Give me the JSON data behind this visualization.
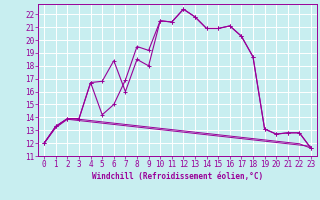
{
  "title": "",
  "xlabel": "Windchill (Refroidissement éolien,°C)",
  "bg_color": "#c8eef0",
  "grid_color": "#ffffff",
  "line_color": "#990099",
  "xlim": [
    -0.5,
    23.5
  ],
  "ylim": [
    11,
    22.8
  ],
  "xticks": [
    0,
    1,
    2,
    3,
    4,
    5,
    6,
    7,
    8,
    9,
    10,
    11,
    12,
    13,
    14,
    15,
    16,
    17,
    18,
    19,
    20,
    21,
    22,
    23
  ],
  "yticks": [
    11,
    12,
    13,
    14,
    15,
    16,
    17,
    18,
    19,
    20,
    21,
    22
  ],
  "series1_x": [
    0,
    1,
    2,
    3,
    4,
    5,
    6,
    7,
    8,
    9,
    10,
    11,
    12,
    13,
    14,
    15,
    16,
    17,
    18,
    19,
    20,
    21,
    22,
    23
  ],
  "series1_y": [
    12.0,
    13.3,
    13.9,
    13.9,
    16.7,
    14.2,
    15.0,
    16.9,
    19.5,
    19.2,
    21.5,
    21.4,
    22.4,
    21.8,
    20.9,
    20.9,
    21.1,
    20.3,
    18.7,
    13.1,
    12.7,
    12.8,
    12.8,
    11.6
  ],
  "series2_x": [
    0,
    1,
    2,
    3,
    4,
    5,
    6,
    7,
    8,
    9,
    10,
    11,
    12,
    13,
    14,
    15,
    16,
    17,
    18,
    19,
    20,
    21,
    22,
    23
  ],
  "series2_y": [
    12.0,
    13.3,
    13.9,
    13.9,
    16.7,
    16.8,
    18.4,
    16.0,
    18.5,
    18.0,
    21.5,
    21.4,
    22.4,
    21.8,
    20.9,
    20.9,
    21.1,
    20.3,
    18.7,
    13.1,
    12.7,
    12.8,
    12.8,
    11.6
  ],
  "series3_x": [
    0,
    1,
    2,
    3,
    4,
    5,
    6,
    7,
    8,
    9,
    10,
    11,
    12,
    13,
    14,
    15,
    16,
    17,
    18,
    19,
    20,
    21,
    22,
    23
  ],
  "series3_y": [
    12.0,
    13.2,
    13.85,
    13.75,
    13.65,
    13.55,
    13.45,
    13.35,
    13.25,
    13.15,
    13.05,
    12.95,
    12.85,
    12.75,
    12.65,
    12.55,
    12.45,
    12.35,
    12.25,
    12.15,
    12.05,
    11.95,
    11.85,
    11.75
  ],
  "series4_x": [
    0,
    1,
    2,
    3,
    4,
    5,
    6,
    7,
    8,
    9,
    10,
    11,
    12,
    13,
    14,
    15,
    16,
    17,
    18,
    19,
    20,
    21,
    22,
    23
  ],
  "series4_y": [
    12.0,
    13.3,
    13.9,
    13.85,
    13.75,
    13.65,
    13.55,
    13.45,
    13.35,
    13.25,
    13.15,
    13.05,
    12.95,
    12.85,
    12.75,
    12.65,
    12.55,
    12.45,
    12.35,
    12.25,
    12.15,
    12.05,
    11.95,
    11.6
  ],
  "tick_fontsize": 5.5,
  "xlabel_fontsize": 5.5
}
